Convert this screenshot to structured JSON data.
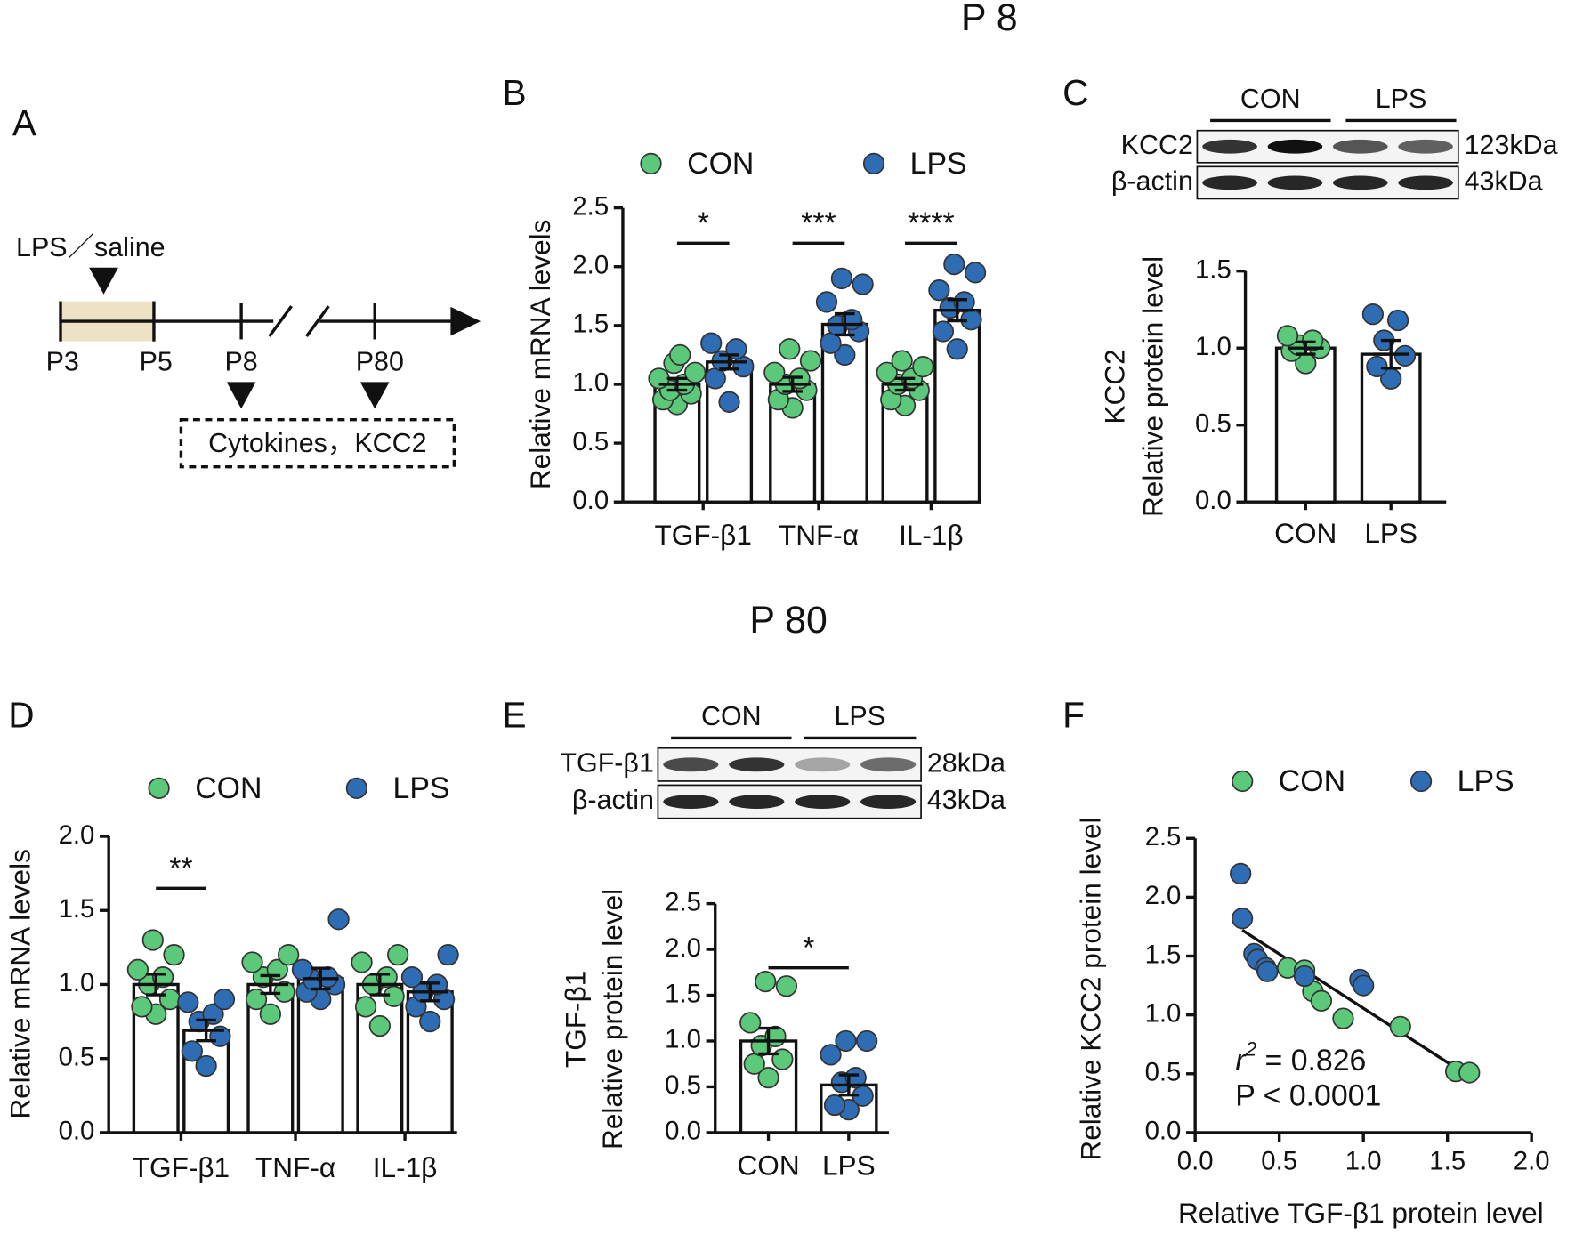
{
  "headings": [
    "P 8",
    "P 80"
  ],
  "panel_labels": [
    "A",
    "B",
    "C",
    "D",
    "E",
    "F"
  ],
  "timeline": {
    "treatment": "LPS／saline",
    "days": [
      "P3",
      "P5",
      "P8",
      "P80"
    ],
    "readout": "Cytokines，KCC2"
  },
  "blots": [
    {
      "groups": [
        "CON",
        "LPS"
      ],
      "rows": [
        {
          "label": "KCC2",
          "size": "123kDa"
        },
        {
          "label": "β-actin",
          "size": "43kDa"
        }
      ]
    },
    {
      "groups": [
        "CON",
        "LPS"
      ],
      "rows": [
        {
          "label": "TGF-β1",
          "size": "28kDa"
        },
        {
          "label": "β-actin",
          "size": "43kDa"
        }
      ]
    }
  ],
  "chart_data": [
    {
      "type": "bar",
      "ylabel": "Relative mRNA levels",
      "categories": [
        "TGF-β1",
        "TNF-α",
        "IL-1β"
      ],
      "series": [
        {
          "name": "CON",
          "color": "#5cc97a",
          "values": [
            1.0,
            1.0,
            1.0
          ],
          "errors": [
            0.05,
            0.06,
            0.05
          ],
          "points": [
            [
              0.83,
              0.87,
              0.92,
              0.95,
              1.0,
              1.05,
              1.1,
              1.18,
              1.25
            ],
            [
              0.8,
              0.87,
              0.95,
              1.0,
              1.05,
              1.1,
              1.2,
              1.3
            ],
            [
              0.82,
              0.87,
              0.95,
              1.0,
              1.05,
              1.1,
              1.15,
              1.2
            ]
          ]
        },
        {
          "name": "LPS",
          "color": "#2e6db4",
          "values": [
            1.19,
            1.51,
            1.63
          ],
          "errors": [
            0.06,
            0.09,
            0.09
          ],
          "points": [
            [
              0.85,
              1.05,
              1.15,
              1.2,
              1.3,
              1.35
            ],
            [
              1.25,
              1.35,
              1.45,
              1.5,
              1.55,
              1.7,
              1.85,
              1.9
            ],
            [
              1.3,
              1.45,
              1.55,
              1.65,
              1.7,
              1.8,
              1.95,
              2.02
            ]
          ]
        }
      ],
      "significance": [
        "*",
        "***",
        "****"
      ],
      "ylim": [
        0,
        2.5
      ],
      "yticks": [
        {
          "value": 0,
          "label": "0.0"
        },
        0.5,
        {
          "value": 1,
          "label": "1.0"
        },
        1.5,
        {
          "value": 2,
          "label": "2.0"
        },
        2.5
      ]
    },
    {
      "type": "bar",
      "ylabel": [
        "KCC2",
        "Relative  protein level"
      ],
      "categories": [
        "CON",
        "LPS"
      ],
      "values": [
        1.0,
        0.96
      ],
      "errors": [
        0.04,
        0.09
      ],
      "point_colors": [
        "#5cc97a",
        "#2e6db4"
      ],
      "points": [
        [
          0.9,
          0.98,
          1.0,
          1.02,
          1.05,
          1.08
        ],
        [
          0.8,
          0.88,
          0.95,
          1.05,
          1.18,
          1.22
        ]
      ],
      "ylim": [
        0,
        1.5
      ],
      "yticks": [
        {
          "value": 0,
          "label": "0.0"
        },
        0.5,
        {
          "value": 1,
          "label": "1.0"
        },
        1.5
      ]
    },
    {
      "type": "bar",
      "ylabel": "Relative mRNA levels",
      "categories": [
        "TGF-β1",
        "TNF-α",
        "IL-1β"
      ],
      "series": [
        {
          "name": "CON",
          "color": "#5cc97a",
          "values": [
            1.0,
            1.0,
            1.0
          ],
          "errors": [
            0.07,
            0.06,
            0.07
          ],
          "points": [
            [
              0.8,
              0.85,
              0.9,
              1.0,
              1.05,
              1.1,
              1.2,
              1.3
            ],
            [
              0.8,
              0.9,
              0.95,
              1.05,
              1.1,
              1.15,
              1.2
            ],
            [
              0.72,
              0.85,
              0.92,
              1.0,
              1.05,
              1.15,
              1.2
            ]
          ]
        },
        {
          "name": "LPS",
          "color": "#2e6db4",
          "values": [
            0.69,
            1.04,
            0.95
          ],
          "errors": [
            0.07,
            0.07,
            0.06
          ],
          "points": [
            [
              0.45,
              0.55,
              0.65,
              0.75,
              0.8,
              0.88,
              0.9
            ],
            [
              0.9,
              0.95,
              1.0,
              1.03,
              1.05,
              1.1,
              1.44
            ],
            [
              0.75,
              0.85,
              0.9,
              0.95,
              1.0,
              1.05,
              1.2
            ]
          ]
        }
      ],
      "significance": [
        "**",
        null,
        null
      ],
      "ylim": [
        0,
        2
      ],
      "yticks": [
        {
          "value": 0,
          "label": "0.0"
        },
        0.5,
        {
          "value": 1,
          "label": "1.0"
        },
        1.5,
        {
          "value": 2,
          "label": "2.0"
        }
      ]
    },
    {
      "type": "bar",
      "ylabel": [
        "TGF-β1",
        "Relative  protein level"
      ],
      "categories": [
        "CON",
        "LPS"
      ],
      "values": [
        1.0,
        0.52
      ],
      "errors": [
        0.14,
        0.11
      ],
      "point_colors": [
        "#5cc97a",
        "#2e6db4"
      ],
      "points": [
        [
          0.6,
          0.75,
          0.8,
          0.95,
          1.05,
          1.2,
          1.6,
          1.65
        ],
        [
          0.25,
          0.3,
          0.4,
          0.55,
          0.6,
          0.85,
          1.0,
          1.0
        ]
      ],
      "significance": "*",
      "ylim": [
        0,
        2.5
      ],
      "yticks": [
        {
          "value": 0,
          "label": "0.0"
        },
        0.5,
        {
          "value": 1,
          "label": "1.0"
        },
        1.5,
        {
          "value": 2,
          "label": "2.0"
        },
        2.5
      ]
    },
    {
      "type": "scatter",
      "xlabel": "Relative TGF-β1 protein level",
      "ylabel": "Relative KCC2 protein level",
      "series": [
        {
          "name": "CON",
          "color": "#5cc97a",
          "x": [
            0.55,
            0.65,
            0.7,
            0.75,
            0.88,
            1.22,
            1.55,
            1.63
          ],
          "y": [
            1.4,
            1.38,
            1.2,
            1.12,
            0.97,
            0.9,
            0.52,
            0.51
          ]
        },
        {
          "name": "LPS",
          "color": "#2e6db4",
          "x": [
            0.27,
            0.28,
            0.35,
            0.37,
            0.42,
            0.43,
            0.65,
            0.98,
            1.0
          ],
          "y": [
            2.2,
            1.82,
            1.52,
            1.47,
            1.4,
            1.37,
            1.33,
            1.3,
            1.25
          ]
        }
      ],
      "fit_line": {
        "x": [
          0.28,
          1.55
        ],
        "y": [
          1.72,
          0.55
        ]
      },
      "annotation": {
        "symbol": "r",
        "power": "2",
        "text": " = 0.826",
        "p": "P < 0.0001"
      },
      "xlim": [
        0,
        2
      ],
      "ylim": [
        0,
        2.5
      ],
      "xticks": [
        {
          "value": 0,
          "label": "0.0"
        },
        0.5,
        {
          "value": 1,
          "label": "1.0"
        },
        1.5,
        {
          "value": 2,
          "label": "2.0"
        }
      ],
      "yticks": [
        {
          "value": 0,
          "label": "0.0"
        },
        0.5,
        {
          "value": 1,
          "label": "1.0"
        },
        1.5,
        {
          "value": 2,
          "label": "2.0"
        },
        2.5
      ]
    }
  ]
}
